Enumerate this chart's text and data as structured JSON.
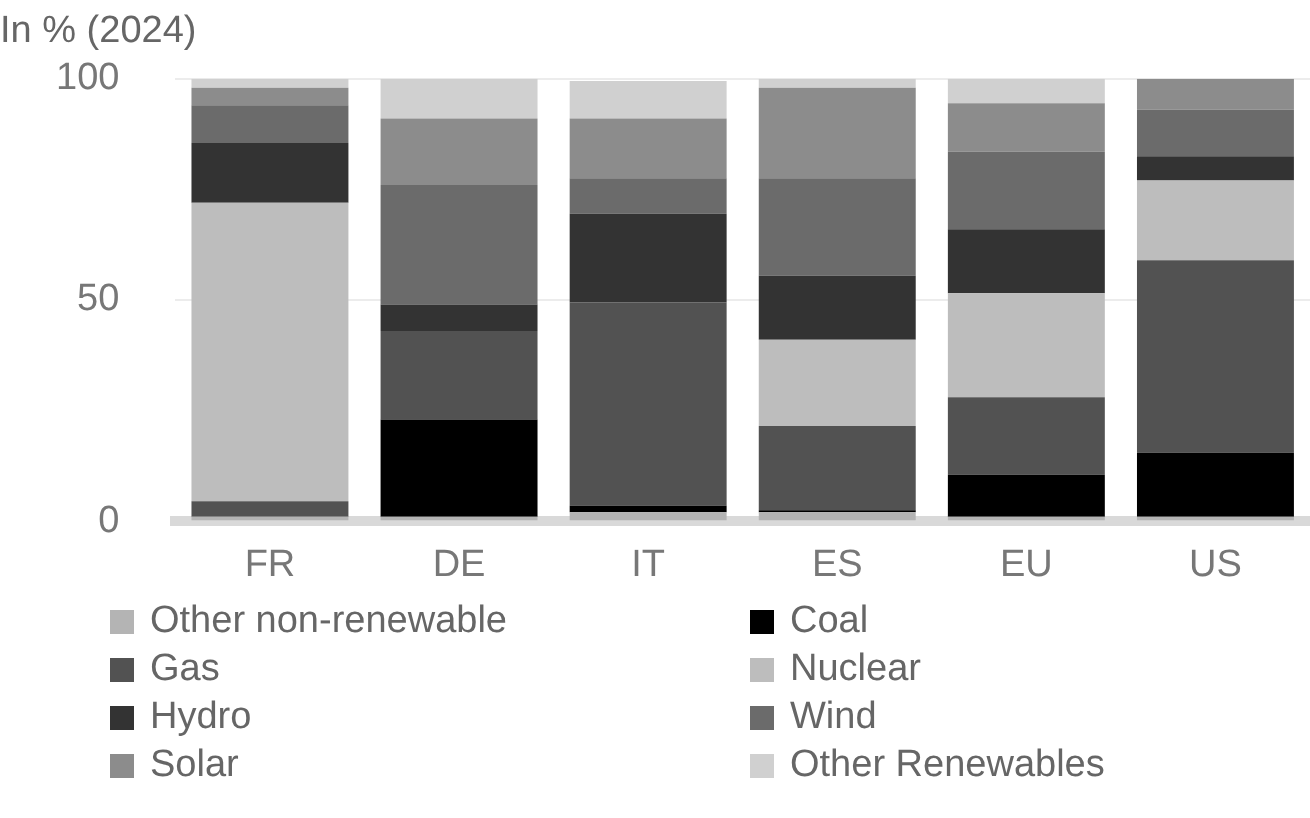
{
  "chart_data": {
    "type": "bar",
    "stacked": true,
    "ylabel": "In % (2024)",
    "categories": [
      "FR",
      "DE",
      "IT",
      "ES",
      "EU",
      "US"
    ],
    "series": [
      {
        "name": "Other non-renewable",
        "color": "#b4b4b4",
        "values": [
          1,
          1,
          2,
          2,
          1,
          1
        ]
      },
      {
        "name": "Coal",
        "color": "#000000",
        "values": [
          0,
          22,
          1.5,
          0.5,
          9.5,
          14.5
        ]
      },
      {
        "name": "Gas",
        "color": "#525252",
        "values": [
          3.5,
          20,
          46,
          19,
          17.5,
          43.5
        ]
      },
      {
        "name": "Nuclear",
        "color": "#bdbdbd",
        "values": [
          67.5,
          0,
          0,
          19.5,
          23.5,
          18
        ]
      },
      {
        "name": "Hydro",
        "color": "#333333",
        "values": [
          13.5,
          6,
          20,
          14.5,
          14.5,
          5.5
        ]
      },
      {
        "name": "Wind",
        "color": "#6b6b6b",
        "values": [
          8.5,
          27,
          8,
          22,
          17.5,
          10.5
        ]
      },
      {
        "name": "Solar",
        "color": "#8c8c8c",
        "values": [
          4,
          15,
          13.5,
          20.5,
          11,
          7
        ]
      },
      {
        "name": "Other Renewables",
        "color": "#d0d0d0",
        "values": [
          2,
          9,
          8.5,
          2,
          5.5,
          0
        ]
      }
    ],
    "ylim": [
      0,
      100
    ],
    "yticks": [
      0,
      50,
      100
    ],
    "grid": "y",
    "legend": "bottom"
  }
}
